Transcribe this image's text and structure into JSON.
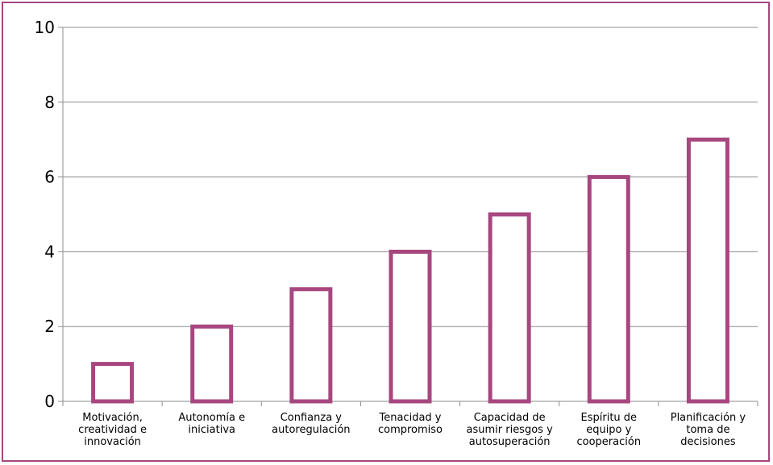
{
  "chart_data": {
    "type": "bar",
    "title": "",
    "xlabel": "",
    "ylabel": "",
    "categories": [
      [
        "Motivación,",
        "creatividad e",
        "innovación"
      ],
      [
        "Autonomía e",
        "iniciativa"
      ],
      [
        "Confianza y",
        "autoregulación"
      ],
      [
        "Tenacidad y",
        "compromiso"
      ],
      [
        "Capacidad de",
        "asumir riesgos y",
        "autosuperación"
      ],
      [
        "Espíritu de",
        "equipo y",
        "cooperación"
      ],
      [
        "Planificación y",
        "toma de",
        "decisiones"
      ]
    ],
    "values": [
      1,
      2,
      3,
      4,
      5,
      6,
      7
    ],
    "ylim": [
      0,
      10
    ],
    "yticks": [
      "0",
      "2",
      "4",
      "6",
      "8",
      "10"
    ],
    "grid": true,
    "legend": "none",
    "colors": {
      "bar_stroke": "#a7477f",
      "bar_fill": "#ffffff",
      "frame": "#a7477f",
      "grid": "#8c8c8c",
      "axis": "#8c8c8c"
    }
  }
}
